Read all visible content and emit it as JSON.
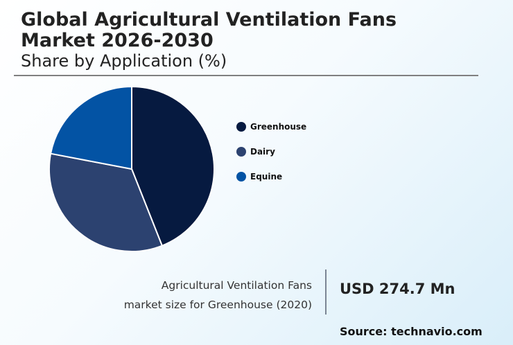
{
  "header": {
    "title": "Global Agricultural Ventilation Fans Market 2026-2030",
    "subtitle": "Share by Application (%)"
  },
  "legend": {
    "items": [
      {
        "label": "Greenhouse",
        "color": "#061a40"
      },
      {
        "label": "Dairy",
        "color": "#2c4270"
      },
      {
        "label": "Equine",
        "color": "#0353a4"
      }
    ]
  },
  "stat": {
    "label_line1": "Agricultural Ventilation Fans",
    "label_line2": "market size for Greenhouse (2020)",
    "value": "USD 274.7 Mn"
  },
  "footer": {
    "source": "Source: technavio.com"
  },
  "chart_data": {
    "type": "pie",
    "title": "Global Agricultural Ventilation Fans Market 2026-2030",
    "subtitle": "Share by Application (%)",
    "categories": [
      "Greenhouse",
      "Dairy",
      "Equine"
    ],
    "values": [
      44,
      34,
      22
    ],
    "colors": [
      "#061a40",
      "#2c4270",
      "#0353a4"
    ],
    "legend_position": "right",
    "start_angle": "12 o'clock, clockwise",
    "annotation": "Agricultural Ventilation Fans market size for Greenhouse (2020): USD 274.7 Mn"
  }
}
